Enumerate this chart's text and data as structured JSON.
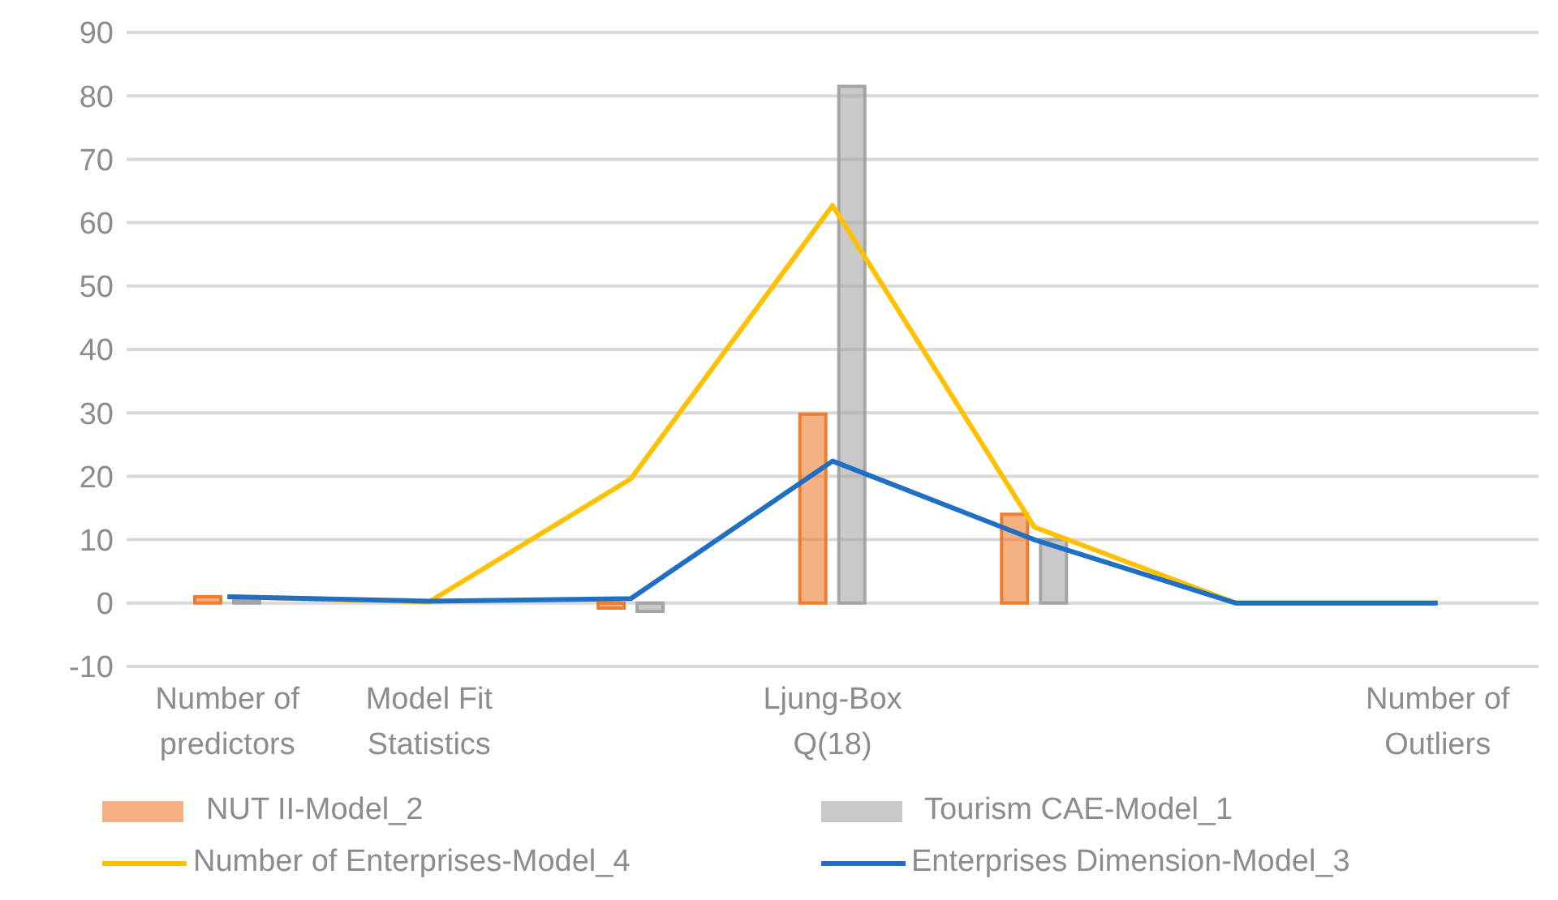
{
  "chart_data": {
    "type": "bar",
    "categories": [
      "Number of predictors",
      "Model Fit Statistics",
      null,
      "Ljung-Box Q(18)",
      null,
      null,
      "Number of Outliers"
    ],
    "series": [
      {
        "name": "NUT II-Model_2",
        "color": "#ed7d31",
        "values": [
          1,
          0,
          -0.8,
          29.8,
          14,
          0,
          0
        ]
      },
      {
        "name": "Tourism CAE-Model_1",
        "color": "#a5a5a5",
        "values": [
          0.5,
          0,
          -1.3,
          81.5,
          10,
          0,
          0
        ]
      },
      {
        "name": "Number of Enterprises-Model_4",
        "type": "line",
        "color": "#ffc000",
        "values": [
          1,
          0.2,
          19.6,
          62.7,
          12,
          0,
          0
        ]
      },
      {
        "name": "Enterprises Dimension-Model_3",
        "type": "line",
        "color": "#1f6fc5",
        "values": [
          1,
          0.3,
          0.7,
          22.4,
          10,
          0,
          0
        ]
      }
    ],
    "ylim": [
      -10,
      90
    ],
    "yticks": [
      -10,
      0,
      10,
      20,
      30,
      40,
      50,
      60,
      70,
      80,
      90
    ],
    "grid": "y",
    "legend": "bottom",
    "marker": "none"
  }
}
